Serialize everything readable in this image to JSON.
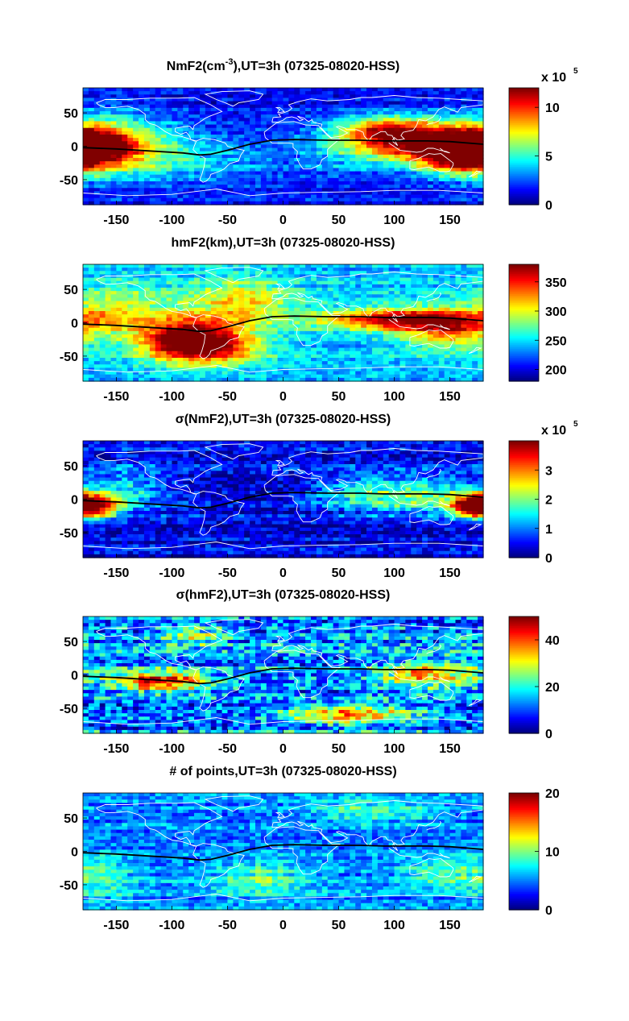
{
  "figure": {
    "colormap": "jet",
    "ocean_bg": "#0a2a9e",
    "coast_color": "#ffffff",
    "equator_color": "#000000"
  },
  "chart_data": [
    {
      "type": "heatmap",
      "title_parts": [
        "NmF2(cm",
        "-3",
        "),UT=3h (07325-08020-HSS)"
      ],
      "x_ticks": [
        "-150",
        "-100",
        "-50",
        "0",
        "50",
        "100",
        "150"
      ],
      "y_ticks": [
        "50",
        "0",
        "-50"
      ],
      "xlim": [
        -180,
        180
      ],
      "ylim": [
        -87.5,
        87.5
      ],
      "colorbar": {
        "min": 0,
        "max": 12,
        "ticks": [
          "10",
          "5",
          "0"
        ],
        "tick_values": [
          10,
          5,
          0
        ],
        "multiplier": "x 10",
        "multiplier_exp": "5"
      },
      "features": [
        {
          "x": -170,
          "y": 0,
          "v": 9,
          "sx": 25,
          "sy": 22
        },
        {
          "x": -140,
          "y": 5,
          "v": 5,
          "sx": 40,
          "sy": 30
        },
        {
          "x": -120,
          "y": -20,
          "v": 4,
          "sx": 40,
          "sy": 25
        },
        {
          "x": -160,
          "y": 55,
          "v": 2,
          "sx": 30,
          "sy": 15
        },
        {
          "x": 130,
          "y": 5,
          "v": 11,
          "sx": 40,
          "sy": 22
        },
        {
          "x": 90,
          "y": 25,
          "v": 7,
          "sx": 30,
          "sy": 15
        },
        {
          "x": 160,
          "y": -15,
          "v": 9,
          "sx": 25,
          "sy": 20
        },
        {
          "x": 60,
          "y": -5,
          "v": 4,
          "sx": 35,
          "sy": 25
        },
        {
          "x": -40,
          "y": -20,
          "v": 3,
          "sx": 35,
          "sy": 25
        }
      ],
      "base": 1.5,
      "noise": 2
    },
    {
      "type": "heatmap",
      "title_parts": [
        "hmF2(km),UT=3h (07325-08020-HSS)"
      ],
      "x_ticks": [
        "-150",
        "-100",
        "-50",
        "0",
        "50",
        "100",
        "150"
      ],
      "y_ticks": [
        "50",
        "0",
        "-50"
      ],
      "xlim": [
        -180,
        180
      ],
      "ylim": [
        -87.5,
        87.5
      ],
      "colorbar": {
        "min": 180,
        "max": 380,
        "ticks": [
          "350",
          "300",
          "250",
          "200"
        ],
        "tick_values": [
          350,
          300,
          250,
          200
        ]
      },
      "features": [
        {
          "x": -90,
          "y": -25,
          "v": 375,
          "sx": 30,
          "sy": 22
        },
        {
          "x": -60,
          "y": -35,
          "v": 330,
          "sx": 30,
          "sy": 20
        },
        {
          "x": -40,
          "y": 30,
          "v": 310,
          "sx": 35,
          "sy": 25
        },
        {
          "x": 100,
          "y": 5,
          "v": 360,
          "sx": 45,
          "sy": 12
        },
        {
          "x": 150,
          "y": -10,
          "v": 330,
          "sx": 30,
          "sy": 20
        },
        {
          "x": -150,
          "y": 20,
          "v": 300,
          "sx": 30,
          "sy": 25
        }
      ],
      "base": 245,
      "noise": 35
    },
    {
      "type": "heatmap",
      "title_parts": [
        "σ(NmF2),UT=3h (07325-08020-HSS)"
      ],
      "x_ticks": [
        "-150",
        "-100",
        "-50",
        "0",
        "50",
        "100",
        "150"
      ],
      "y_ticks": [
        "50",
        "0",
        "-50"
      ],
      "xlim": [
        -180,
        180
      ],
      "ylim": [
        -87.5,
        87.5
      ],
      "colorbar": {
        "min": 0,
        "max": 4,
        "ticks": [
          "3",
          "2",
          "1",
          "0"
        ],
        "tick_values": [
          3,
          2,
          1,
          0
        ],
        "multiplier": "x 10",
        "multiplier_exp": "5"
      },
      "features": [
        {
          "x": -170,
          "y": -10,
          "v": 3.2,
          "sx": 15,
          "sy": 12
        },
        {
          "x": 170,
          "y": -10,
          "v": 3.5,
          "sx": 15,
          "sy": 12
        },
        {
          "x": 120,
          "y": 5,
          "v": 2,
          "sx": 40,
          "sy": 20
        },
        {
          "x": -140,
          "y": 10,
          "v": 1.5,
          "sx": 30,
          "sy": 25
        },
        {
          "x": 60,
          "y": 10,
          "v": 1.2,
          "sx": 30,
          "sy": 20
        }
      ],
      "base": 0.4,
      "noise": 0.9
    },
    {
      "type": "heatmap",
      "title_parts": [
        "σ(hmF2),UT=3h (07325-08020-HSS)"
      ],
      "x_ticks": [
        "-150",
        "-100",
        "-50",
        "0",
        "50",
        "100",
        "150"
      ],
      "y_ticks": [
        "50",
        "0",
        "-50"
      ],
      "xlim": [
        -180,
        180
      ],
      "ylim": [
        -87.5,
        87.5
      ],
      "colorbar": {
        "min": 0,
        "max": 50,
        "ticks": [
          "40",
          "20",
          "0"
        ],
        "tick_values": [
          40,
          20,
          0
        ]
      },
      "features": [
        {
          "x": -110,
          "y": -10,
          "v": 45,
          "sx": 30,
          "sy": 10
        },
        {
          "x": 60,
          "y": -60,
          "v": 38,
          "sx": 40,
          "sy": 10
        },
        {
          "x": 130,
          "y": 0,
          "v": 35,
          "sx": 30,
          "sy": 15
        },
        {
          "x": -80,
          "y": 60,
          "v": 25,
          "sx": 20,
          "sy": 10
        }
      ],
      "base": 12,
      "noise": 18
    },
    {
      "type": "heatmap",
      "title_parts": [
        "# of points,UT=3h (07325-08020-HSS)"
      ],
      "x_ticks": [
        "-150",
        "-100",
        "-50",
        "0",
        "50",
        "100",
        "150"
      ],
      "y_ticks": [
        "50",
        "0",
        "-50"
      ],
      "xlim": [
        -180,
        180
      ],
      "ylim": [
        -87.5,
        87.5
      ],
      "colorbar": {
        "min": 0,
        "max": 20,
        "ticks": [
          "20",
          "10",
          "0"
        ],
        "tick_values": [
          20,
          10,
          0
        ]
      },
      "features": [
        {
          "x": -20,
          "y": -40,
          "v": 9,
          "sx": 30,
          "sy": 20
        },
        {
          "x": 80,
          "y": 60,
          "v": 9,
          "sx": 40,
          "sy": 12
        },
        {
          "x": 150,
          "y": -30,
          "v": 9,
          "sx": 30,
          "sy": 20
        },
        {
          "x": -160,
          "y": -40,
          "v": 8,
          "sx": 20,
          "sy": 25
        }
      ],
      "base": 5,
      "noise": 4
    }
  ]
}
